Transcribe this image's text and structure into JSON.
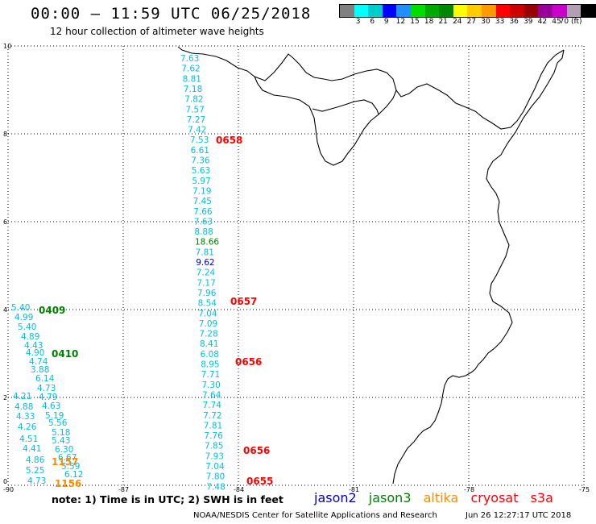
{
  "header": {
    "title": "00:00 – 11:59 UTC 06/25/2018",
    "subtitle": "12 hour collection of altimeter wave heights"
  },
  "colorbar": {
    "unit_label": "(ft)",
    "swatches": [
      "#808080",
      "#00ffff",
      "#00cccc",
      "#0000ff",
      "#1e90ff",
      "#00dd00",
      "#00aa00",
      "#008800",
      "#ffff00",
      "#ffcc00",
      "#ff9900",
      "#ff0000",
      "#cc0000",
      "#990000",
      "#990099",
      "#cc00cc",
      "#b2a0b2",
      "#000000"
    ],
    "labels": [
      "3",
      "6",
      "9",
      "12",
      "15",
      "18",
      "21",
      "24",
      "27",
      "30",
      "33",
      "36",
      "39",
      "42",
      "45",
      "70 (ft)"
    ]
  },
  "axes": {
    "x_ticks": [
      "-90",
      "-87",
      "-84",
      "-81",
      "-78",
      "-75"
    ],
    "y_ticks": [
      "0",
      "2",
      "4",
      "6",
      "8",
      "10"
    ]
  },
  "satellite_colors": {
    "cryosat": "#00bfdf",
    "jason3": "#008000",
    "jason2": "#0000cc",
    "altika": "#ff8c00",
    "s3a": "#ff0000"
  },
  "track_main": [
    {
      "v": "7.63",
      "c": "cryosat"
    },
    {
      "v": "7.62",
      "c": "cryosat"
    },
    {
      "v": "8.81",
      "c": "cryosat"
    },
    {
      "v": "7.18",
      "c": "cryosat"
    },
    {
      "v": "7.82",
      "c": "cryosat"
    },
    {
      "v": "7.57",
      "c": "cryosat"
    },
    {
      "v": "7.27",
      "c": "cryosat"
    },
    {
      "v": "7.42",
      "c": "cryosat"
    },
    {
      "v": "7.53",
      "c": "cryosat"
    },
    {
      "v": "6.61",
      "c": "cryosat"
    },
    {
      "v": "7.36",
      "c": "cryosat"
    },
    {
      "v": "5.63",
      "c": "cryosat"
    },
    {
      "v": "5.97",
      "c": "cryosat"
    },
    {
      "v": "7.19",
      "c": "cryosat"
    },
    {
      "v": "7.45",
      "c": "cryosat"
    },
    {
      "v": "7.66",
      "c": "cryosat"
    },
    {
      "v": "7.63",
      "c": "cryosat"
    },
    {
      "v": "8.88",
      "c": "cryosat"
    },
    {
      "v": "18.66",
      "c": "jason3"
    },
    {
      "v": "7.81",
      "c": "cryosat"
    },
    {
      "v": "9.62",
      "c": "jason2"
    },
    {
      "v": "7.24",
      "c": "cryosat"
    },
    {
      "v": "7.17",
      "c": "cryosat"
    },
    {
      "v": "7.96",
      "c": "cryosat"
    },
    {
      "v": "8.54",
      "c": "cryosat"
    },
    {
      "v": "7.04",
      "c": "cryosat"
    },
    {
      "v": "7.09",
      "c": "cryosat"
    },
    {
      "v": "7.28",
      "c": "cryosat"
    },
    {
      "v": "8.41",
      "c": "cryosat"
    },
    {
      "v": "6.08",
      "c": "cryosat"
    },
    {
      "v": "8.95",
      "c": "cryosat"
    },
    {
      "v": "7.71",
      "c": "cryosat"
    },
    {
      "v": "7.30",
      "c": "cryosat"
    },
    {
      "v": "7.64",
      "c": "cryosat"
    },
    {
      "v": "7.74",
      "c": "cryosat"
    },
    {
      "v": "7.72",
      "c": "cryosat"
    },
    {
      "v": "7.81",
      "c": "cryosat"
    },
    {
      "v": "7.76",
      "c": "cryosat"
    },
    {
      "v": "7.85",
      "c": "cryosat"
    },
    {
      "v": "7.93",
      "c": "cryosat"
    },
    {
      "v": "7.04",
      "c": "cryosat"
    },
    {
      "v": "7.80",
      "c": "cryosat"
    },
    {
      "v": "7.48",
      "c": "cryosat"
    }
  ],
  "track_left": [
    {
      "v": "5.40",
      "c": "cryosat"
    },
    {
      "v": "4.99",
      "c": "cryosat"
    },
    {
      "v": "5.40",
      "c": "cryosat"
    },
    {
      "v": "4.89",
      "c": "cryosat"
    },
    {
      "v": "4.43",
      "c": "cryosat"
    },
    {
      "v": "4.90",
      "c": "cryosat"
    },
    {
      "v": "4.74",
      "c": "cryosat"
    },
    {
      "v": "3.88",
      "c": "cryosat"
    },
    {
      "v": "6.14",
      "c": "cryosat"
    },
    {
      "v": "4.73",
      "c": "cryosat"
    },
    {
      "v": "4.21",
      "c": "cryosat"
    },
    {
      "v": "4.79",
      "c": "cryosat"
    },
    {
      "v": "4.88",
      "c": "cryosat"
    },
    {
      "v": "4.63",
      "c": "cryosat"
    },
    {
      "v": "4.33",
      "c": "cryosat"
    },
    {
      "v": "5.19",
      "c": "cryosat"
    },
    {
      "v": "4.26",
      "c": "cryosat"
    },
    {
      "v": "5.56",
      "c": "cryosat"
    },
    {
      "v": "4.51",
      "c": "cryosat"
    },
    {
      "v": "5.18",
      "c": "cryosat"
    },
    {
      "v": "4.41",
      "c": "cryosat"
    },
    {
      "v": "5.43",
      "c": "cryosat"
    },
    {
      "v": "4.86",
      "c": "cryosat"
    },
    {
      "v": "6.30",
      "c": "cryosat"
    },
    {
      "v": "5.25",
      "c": "cryosat"
    },
    {
      "v": "6.67",
      "c": "cryosat"
    },
    {
      "v": "4.73",
      "c": "cryosat"
    },
    {
      "v": "5.59",
      "c": "cryosat"
    },
    {
      "v": "6.12",
      "c": "cryosat"
    }
  ],
  "pass_times": [
    {
      "t": "0658",
      "c": "s3a"
    },
    {
      "t": "0657",
      "c": "s3a"
    },
    {
      "t": "0656",
      "c": "s3a"
    },
    {
      "t": "0656",
      "c": "s3a"
    },
    {
      "t": "0655",
      "c": "s3a"
    },
    {
      "t": "0409",
      "c": "jason3"
    },
    {
      "t": "0410",
      "c": "jason3"
    },
    {
      "t": "1157",
      "c": "altika"
    },
    {
      "t": "1156",
      "c": "altika"
    }
  ],
  "footer": {
    "note": "note: 1) Time is in UTC; 2) SWH is in feet",
    "legend": [
      "jason2",
      "jason3",
      "altika",
      "cryosat",
      "s3a"
    ],
    "credit": "NOAA/NESDIS Center for Satellite Applications and Research",
    "timestamp": "Jun 26 12:27:17 UTC 2018"
  }
}
